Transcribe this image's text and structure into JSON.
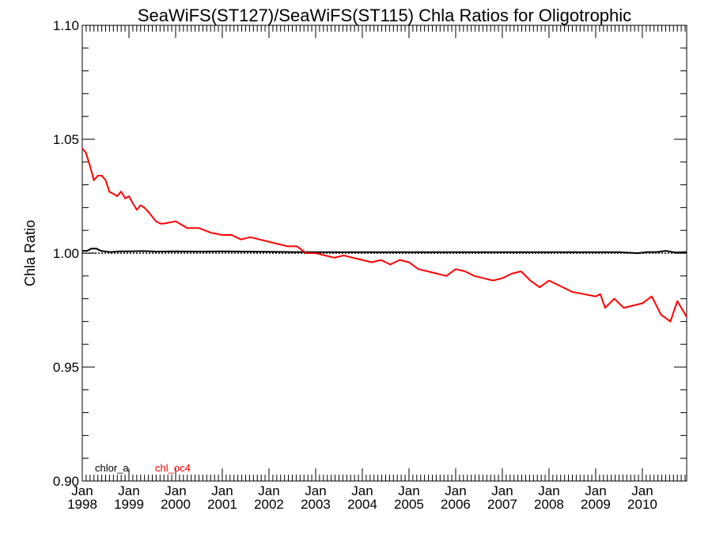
{
  "chart_data": {
    "type": "line",
    "title": "SeaWiFS(ST127)/SeaWiFS(ST115)  Chla Ratios for Oligotrophic",
    "xlabel": "",
    "ylabel": "Chla Ratio",
    "ylim": [
      0.9,
      1.1
    ],
    "yticks": [
      "0.90",
      "0.95",
      "1.00",
      "1.05",
      "1.10"
    ],
    "xlim": [
      1998.0,
      2010.95
    ],
    "xticks": [
      {
        "month": "Jan",
        "year": "1998",
        "value": 1998
      },
      {
        "month": "Jan",
        "year": "1999",
        "value": 1999
      },
      {
        "month": "Jan",
        "year": "2000",
        "value": 2000
      },
      {
        "month": "Jan",
        "year": "2001",
        "value": 2001
      },
      {
        "month": "Jan",
        "year": "2002",
        "value": 2002
      },
      {
        "month": "Jan",
        "year": "2003",
        "value": 2003
      },
      {
        "month": "Jan",
        "year": "2004",
        "value": 2004
      },
      {
        "month": "Jan",
        "year": "2005",
        "value": 2005
      },
      {
        "month": "Jan",
        "year": "2006",
        "value": 2006
      },
      {
        "month": "Jan",
        "year": "2007",
        "value": 2007
      },
      {
        "month": "Jan",
        "year": "2008",
        "value": 2008
      },
      {
        "month": "Jan",
        "year": "2009",
        "value": 2009
      },
      {
        "month": "Jan",
        "year": "2010",
        "value": 2010
      }
    ],
    "reference_line": 1.0,
    "dotted_gridlines": [
      0.95,
      1.0,
      1.05
    ],
    "grid": false,
    "legend_position": "bottom-left",
    "series": [
      {
        "name": "chlor_a",
        "color": "#000000",
        "x": [
          1998.0,
          1998.1,
          1998.2,
          1998.3,
          1998.4,
          1998.6,
          1998.8,
          1999.0,
          1999.3,
          1999.6,
          2000.0,
          2000.5,
          2001.0,
          2001.5,
          2002.0,
          2002.5,
          2003.0,
          2003.5,
          2004.0,
          2005.0,
          2006.0,
          2007.0,
          2008.0,
          2008.5,
          2009.0,
          2009.5,
          2009.9,
          2010.1,
          2010.3,
          2010.5,
          2010.7,
          2010.95
        ],
        "y": [
          1.001,
          1.001,
          1.002,
          1.002,
          1.001,
          1.0005,
          1.0008,
          1.0008,
          1.0009,
          1.0007,
          1.0008,
          1.0007,
          1.0008,
          1.0007,
          1.0006,
          1.0005,
          1.0004,
          1.0004,
          1.0004,
          1.0004,
          1.0004,
          1.0004,
          1.0004,
          1.0004,
          1.0004,
          1.0004,
          1.0,
          1.0005,
          1.0005,
          1.001,
          1.0003,
          1.0005
        ]
      },
      {
        "name": "chl_oc4",
        "color": "#ff0000",
        "x": [
          1998.0,
          1998.08,
          1998.17,
          1998.25,
          1998.33,
          1998.42,
          1998.5,
          1998.58,
          1998.67,
          1998.75,
          1998.83,
          1998.92,
          1999.0,
          1999.08,
          1999.17,
          1999.25,
          1999.33,
          1999.42,
          1999.5,
          1999.58,
          1999.67,
          1999.75,
          2000.0,
          2000.25,
          2000.5,
          2000.75,
          2001.0,
          2001.2,
          2001.4,
          2001.6,
          2001.8,
          2002.0,
          2002.2,
          2002.4,
          2002.6,
          2002.8,
          2003.0,
          2003.2,
          2003.4,
          2003.6,
          2003.8,
          2004.0,
          2004.2,
          2004.4,
          2004.6,
          2004.8,
          2005.0,
          2005.2,
          2005.4,
          2005.6,
          2005.8,
          2006.0,
          2006.2,
          2006.4,
          2006.6,
          2006.8,
          2007.0,
          2007.2,
          2007.4,
          2007.6,
          2007.8,
          2008.0,
          2008.5,
          2009.0,
          2009.1,
          2009.2,
          2009.4,
          2009.6,
          2010.0,
          2010.2,
          2010.4,
          2010.6,
          2010.75,
          2010.95
        ],
        "y": [
          1.046,
          1.044,
          1.038,
          1.032,
          1.034,
          1.034,
          1.032,
          1.027,
          1.026,
          1.025,
          1.027,
          1.024,
          1.025,
          1.022,
          1.019,
          1.021,
          1.02,
          1.018,
          1.016,
          1.014,
          1.013,
          1.013,
          1.014,
          1.011,
          1.011,
          1.009,
          1.008,
          1.008,
          1.006,
          1.007,
          1.006,
          1.005,
          1.004,
          1.003,
          1.003,
          1.0,
          1.0,
          0.999,
          0.998,
          0.999,
          0.998,
          0.997,
          0.996,
          0.997,
          0.995,
          0.997,
          0.996,
          0.993,
          0.992,
          0.991,
          0.99,
          0.993,
          0.992,
          0.99,
          0.989,
          0.988,
          0.989,
          0.991,
          0.992,
          0.988,
          0.985,
          0.988,
          0.983,
          0.981,
          0.982,
          0.976,
          0.98,
          0.976,
          0.978,
          0.981,
          0.973,
          0.97,
          0.979,
          0.972
        ]
      }
    ]
  }
}
